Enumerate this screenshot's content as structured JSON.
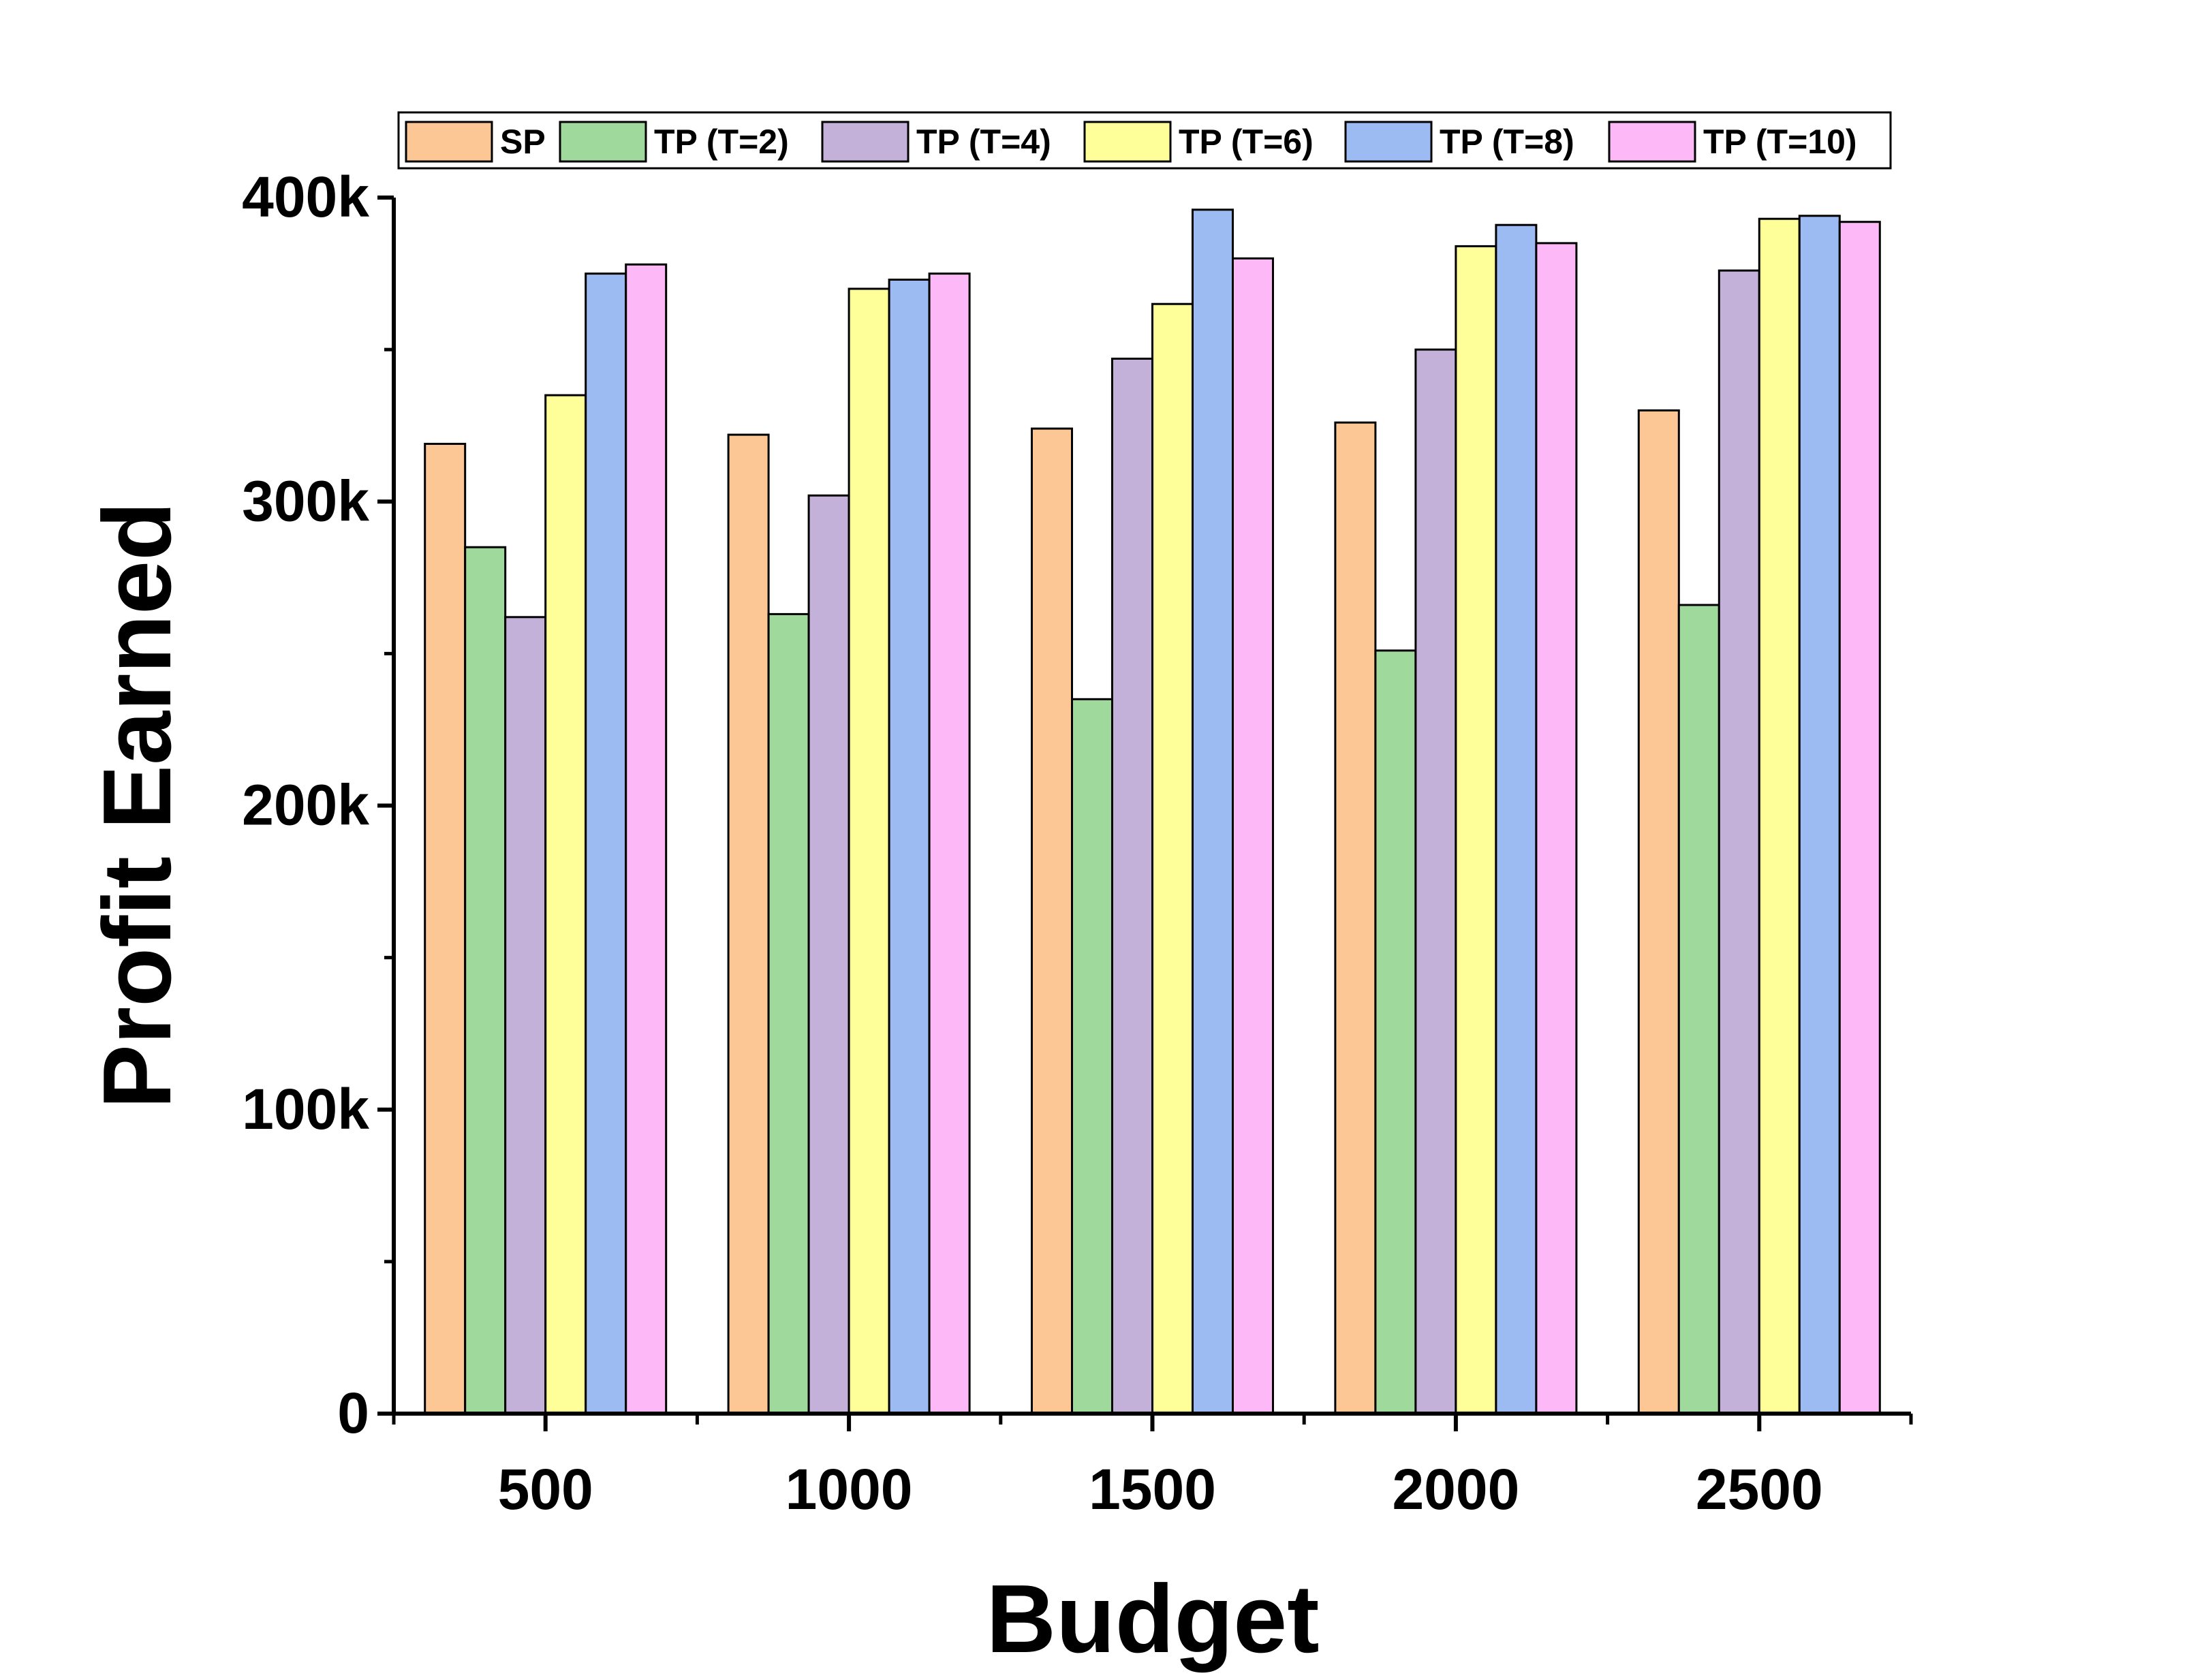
{
  "chart_data": {
    "type": "bar",
    "title": "",
    "xlabel": "Budget",
    "ylabel": "Profit Earned",
    "categories": [
      "500",
      "1000",
      "1500",
      "2000",
      "2500"
    ],
    "series": [
      {
        "name": "SP",
        "color": "#FCC794",
        "values": [
          319000,
          322000,
          324000,
          326000,
          330000
        ]
      },
      {
        "name": "TP (T=2)",
        "color": "#9FD99C",
        "values": [
          285000,
          263000,
          235000,
          251000,
          266000
        ]
      },
      {
        "name": "TP (T=4)",
        "color": "#C4B1D9",
        "values": [
          262000,
          302000,
          347000,
          350000,
          376000
        ]
      },
      {
        "name": "TP (T=6)",
        "color": "#FFFF99",
        "values": [
          335000,
          370000,
          365000,
          384000,
          393000
        ]
      },
      {
        "name": "TP (T=8)",
        "color": "#9BBBF2",
        "values": [
          375000,
          373000,
          396000,
          391000,
          394000
        ]
      },
      {
        "name": "TP (T=10)",
        "color": "#FDB8F8",
        "values": [
          378000,
          375000,
          380000,
          385000,
          392000
        ]
      }
    ],
    "yticks": [
      0,
      100000,
      200000,
      300000,
      400000
    ],
    "ytick_labels": [
      "0",
      "100k",
      "200k",
      "300k",
      "400k"
    ],
    "ylim": [
      0,
      400000
    ],
    "grid": false,
    "legend_position": "top"
  }
}
